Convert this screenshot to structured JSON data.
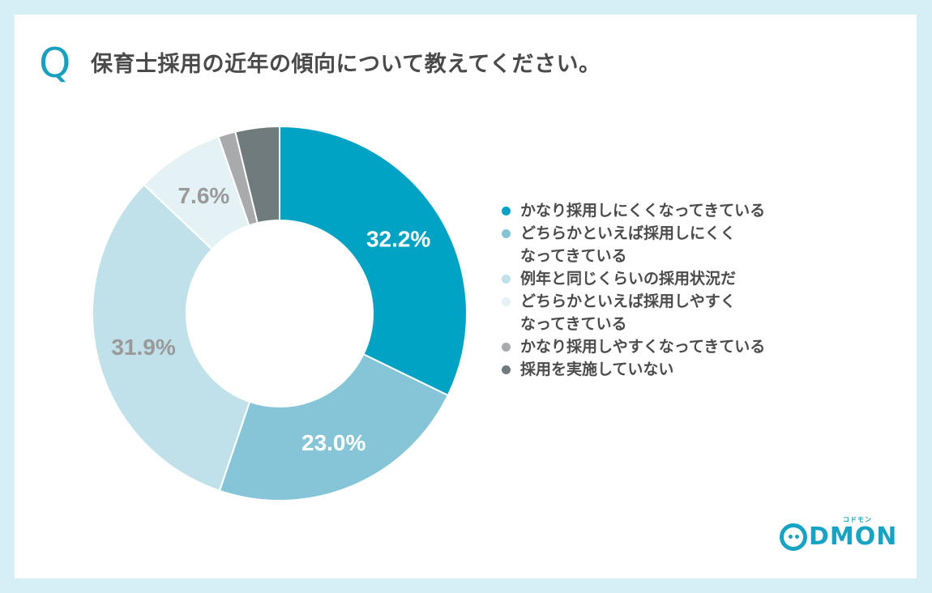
{
  "header": {
    "q_mark": "Q",
    "question": "保育士採用の近年の傾向について教えてください。"
  },
  "chart_data": {
    "type": "pie",
    "variant": "donut",
    "title": "保育士採用の近年の傾向について教えてください。",
    "categories": [
      "かなり採用しにくくなってきている",
      "どちらかといえば採用しにくくなってきている",
      "例年と同じくらいの採用状況だ",
      "どちらかといえば採用しやすくなってきている",
      "かなり採用しやすくなってきている",
      "採用を実施していない"
    ],
    "values": [
      32.2,
      23.0,
      31.9,
      7.6,
      1.5,
      3.8
    ],
    "labels": [
      "32.2%",
      "23.0%",
      "31.9%",
      "7.6%",
      "",
      ""
    ],
    "colors": [
      "#00a3c4",
      "#86c5d7",
      "#c1e1ea",
      "#e4f2f6",
      "#a9aaac",
      "#6f7b7d"
    ],
    "label_colors": [
      "#ffffff",
      "#ffffff",
      "#999999",
      "#999999",
      "#ffffff",
      "#ffffff"
    ],
    "legend_position": "right"
  },
  "legend": {
    "items": [
      {
        "label": "かなり採用しにくくなってきている",
        "color": "#00a3c4"
      },
      {
        "label": "どちらかといえば採用しにくく\nなってきている",
        "color": "#86c5d7"
      },
      {
        "label": "例年と同じくらいの採用状況だ",
        "color": "#c1e1ea"
      },
      {
        "label": "どちらかといえば採用しやすく\nなってきている",
        "color": "#e4f2f6"
      },
      {
        "label": "かなり採用しやすくなってきている",
        "color": "#a9aaac"
      },
      {
        "label": "採用を実施していない",
        "color": "#6f7b7d"
      }
    ]
  },
  "brand": {
    "logo_text": "DMON",
    "logo_sub": "コドモン"
  }
}
